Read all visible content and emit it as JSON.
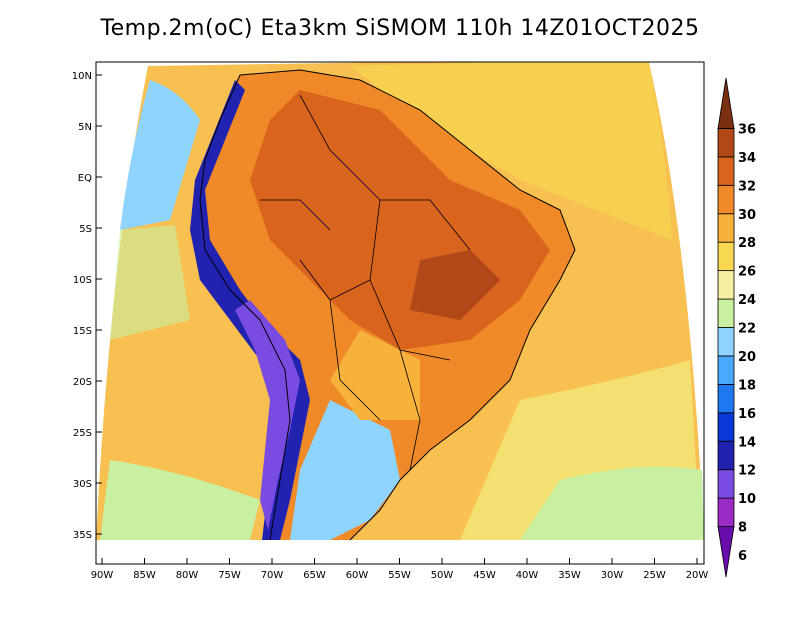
{
  "title": "Temp.2m(oC) Eta3km SiSMOM 110h 14Z01OCT2025",
  "lat_labels": [
    "10N",
    "5N",
    "EQ",
    "5S",
    "10S",
    "15S",
    "20S",
    "25S",
    "30S",
    "35S"
  ],
  "lon_labels": [
    "90W",
    "85W",
    "80W",
    "75W",
    "70W",
    "65W",
    "60W",
    "55W",
    "50W",
    "45W",
    "40W",
    "35W",
    "30W",
    "25W",
    "20W"
  ],
  "colorbar": {
    "labels": [
      "6",
      "8",
      "10",
      "12",
      "14",
      "16",
      "18",
      "20",
      "22",
      "24",
      "26",
      "28",
      "30",
      "32",
      "34",
      "36"
    ],
    "colors": [
      "#6a0dad",
      "#9a2bc4",
      "#7a4be0",
      "#2222b0",
      "#0a37d6",
      "#1f78f0",
      "#4aa8ff",
      "#8fd4ff",
      "#c8f0a0",
      "#f4f0a0",
      "#f7d850",
      "#f6b23a",
      "#f08a28",
      "#d8641e",
      "#b04818",
      "#7a3010"
    ]
  }
}
